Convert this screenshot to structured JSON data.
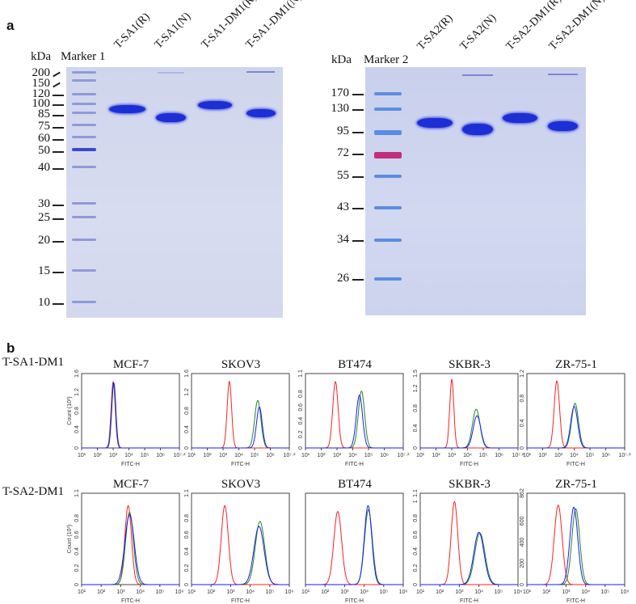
{
  "panel_a": {
    "label": "a",
    "gel1": {
      "unit": "kDa",
      "marker": "Marker 1",
      "marker_sizes": [
        "200",
        "150",
        "120",
        "100",
        "85",
        "75",
        "60",
        "50",
        "40",
        "30",
        "25",
        "20",
        "15",
        "10"
      ],
      "lanes": [
        "T-SA1(R)",
        "T-SA1(N)",
        "T-SA1-DM1(R)",
        "T-SA1-DM1(N)"
      ]
    },
    "gel2": {
      "unit": "kDa",
      "marker": "Marker 2",
      "marker_sizes": [
        "170",
        "130",
        "95",
        "72",
        "55",
        "43",
        "34",
        "26"
      ],
      "lanes": [
        "T-SA2(R)",
        "T-SA2(N)",
        "T-SA2-DM1(R)",
        "T-SA2-DM1(N)"
      ]
    }
  },
  "panel_b": {
    "label": "b",
    "rows": [
      "T-SA1-DM1",
      "T-SA2-DM1"
    ],
    "xlabel": "FITC-H",
    "ylabel": "Count (10³)",
    "colors": {
      "red": "#ff2020",
      "green": "#1f8a1f",
      "blue": "#1a1aff"
    }
  },
  "chart_data": [
    {
      "type": "line",
      "row": 0,
      "title": "MCF-7",
      "xscale": "log",
      "xlim": [
        1,
        7.2
      ],
      "xticks": [
        "10¹",
        "10²",
        "10³",
        "10⁴",
        "10⁵",
        "10⁶",
        "10⁷·²"
      ],
      "ylim": [
        0,
        1.6
      ],
      "yticks": [
        "0",
        "0.4",
        "0.8",
        "1.2",
        "1.6"
      ],
      "curves": {
        "red": [
          3.0,
          1.42,
          0.13
        ],
        "green": [
          3.02,
          1.4,
          0.13
        ],
        "blue": [
          3.04,
          1.4,
          0.13
        ]
      }
    },
    {
      "type": "line",
      "row": 0,
      "title": "SKOV3",
      "xscale": "log",
      "xlim": [
        1,
        7.2
      ],
      "xticks": [
        "10¹",
        "10²",
        "10³",
        "10⁴",
        "10⁵",
        "10⁶",
        "10⁷·²"
      ],
      "ylim": [
        0,
        1.6
      ],
      "yticks": [
        "0",
        "0.4",
        "0.8",
        "1.2",
        "1.6"
      ],
      "curves": {
        "red": [
          3.4,
          1.43,
          0.14
        ],
        "green": [
          5.2,
          1.02,
          0.2
        ],
        "blue": [
          5.3,
          0.88,
          0.18
        ]
      }
    },
    {
      "type": "line",
      "row": 0,
      "title": "BT474",
      "xscale": "log",
      "xlim": [
        1,
        7.2
      ],
      "xticks": [
        "10¹",
        "10²",
        "10³",
        "10⁴",
        "10⁵",
        "10⁶",
        "10⁷·²"
      ],
      "ylim": [
        0,
        1.1
      ],
      "yticks": [
        "0",
        "0.2",
        "0.4",
        "0.6",
        "0.8",
        "1.1"
      ],
      "curves": {
        "red": [
          2.9,
          0.98,
          0.17
        ],
        "green": [
          4.55,
          0.84,
          0.2
        ],
        "blue": [
          4.42,
          0.78,
          0.2
        ]
      }
    },
    {
      "type": "line",
      "row": 0,
      "title": "SKBR-3",
      "xscale": "log",
      "xlim": [
        1,
        7.2
      ],
      "xticks": [
        "10¹",
        "10²",
        "10³",
        "10⁴",
        "10⁵",
        "10⁶",
        "10⁷·²"
      ],
      "ylim": [
        0,
        1.5
      ],
      "yticks": [
        "0",
        "0.4",
        "0.8",
        "1.2",
        "1.5"
      ],
      "curves": {
        "red": [
          3.0,
          1.38,
          0.13
        ],
        "green": [
          4.55,
          0.78,
          0.24
        ],
        "blue": [
          4.6,
          0.65,
          0.24
        ]
      }
    },
    {
      "type": "line",
      "row": 0,
      "title": "ZR-75-1",
      "xscale": "log",
      "xlim": [
        1,
        7.2
      ],
      "xticks": [
        "10¹",
        "10²",
        "10³",
        "10⁴",
        "10⁵",
        "10⁶",
        "10⁷·²"
      ],
      "ylim": [
        0,
        1.2
      ],
      "yticks": [
        "0",
        "0.4",
        "0.8",
        "1.2"
      ],
      "curves": {
        "red": [
          2.9,
          1.08,
          0.17
        ],
        "green": [
          4.05,
          0.72,
          0.22
        ],
        "blue": [
          4.0,
          0.67,
          0.22
        ]
      }
    },
    {
      "type": "line",
      "row": 1,
      "title": "MCF-7",
      "xscale": "log",
      "xlim": [
        1,
        6
      ],
      "xticks": [
        "10¹",
        "10²",
        "10³",
        "10⁴",
        "10⁵",
        "10⁶"
      ],
      "ylim": [
        0,
        1.1
      ],
      "yticks": [
        "0",
        "0.2",
        "0.4",
        "0.6",
        "0.8",
        "1.1"
      ],
      "curves": {
        "red": [
          3.38,
          0.95,
          0.17
        ],
        "green": [
          3.45,
          0.87,
          0.2
        ],
        "blue": [
          3.45,
          0.84,
          0.24
        ]
      }
    },
    {
      "type": "line",
      "row": 1,
      "title": "SKOV3",
      "xscale": "log",
      "xlim": [
        1,
        6
      ],
      "xticks": [
        "10¹",
        "10²",
        "10³",
        "10⁴",
        "10⁵",
        "10⁶"
      ],
      "ylim": [
        0,
        1.1
      ],
      "yticks": [
        "0",
        "0.2",
        "0.4",
        "0.6",
        "0.8",
        "1.1"
      ],
      "curves": {
        "red": [
          2.7,
          0.95,
          0.18
        ],
        "green": [
          4.5,
          0.76,
          0.24
        ],
        "blue": [
          4.45,
          0.7,
          0.26
        ]
      }
    },
    {
      "type": "line",
      "row": 1,
      "title": "BT474",
      "xscale": "log",
      "xlim": [
        1,
        6
      ],
      "xticks": [
        "10¹",
        "10²",
        "10³",
        "10⁴",
        "10⁵",
        "10⁶"
      ],
      "ylim": [
        0,
        1.1
      ],
      "yticks": [],
      "curves": {
        "red": [
          2.65,
          0.88,
          0.2
        ],
        "green": [
          4.22,
          0.9,
          0.2
        ],
        "blue": [
          4.2,
          0.95,
          0.19
        ]
      }
    },
    {
      "type": "line",
      "row": 1,
      "title": "SKBR-3",
      "xscale": "log",
      "xlim": [
        1,
        6
      ],
      "xticks": [
        "10¹",
        "10²",
        "10³",
        "10⁴",
        "10⁵",
        "10⁶"
      ],
      "ylim": [
        0,
        1.1
      ],
      "yticks": [
        "0",
        "0.2",
        "0.4",
        "0.6",
        "0.8",
        "1",
        "1.1"
      ],
      "curves": {
        "red": [
          2.75,
          1.0,
          0.17
        ],
        "green": [
          4.05,
          0.62,
          0.26
        ],
        "blue": [
          4.0,
          0.63,
          0.26
        ]
      }
    },
    {
      "type": "line",
      "row": 1,
      "title": "ZR-75-1",
      "xscale": "log",
      "xlim": [
        1,
        6
      ],
      "xticks": [
        "10¹",
        "10²",
        "10³",
        "10⁴",
        "10⁵",
        "10⁶"
      ],
      "ylim": [
        0,
        862
      ],
      "yticks": [
        "0",
        "200",
        "400",
        "600",
        "862"
      ],
      "curves": {
        "red": [
          2.6,
          750,
          0.2
        ],
        "green": [
          3.5,
          715,
          0.2
        ],
        "blue": [
          3.4,
          730,
          0.2
        ]
      }
    }
  ]
}
